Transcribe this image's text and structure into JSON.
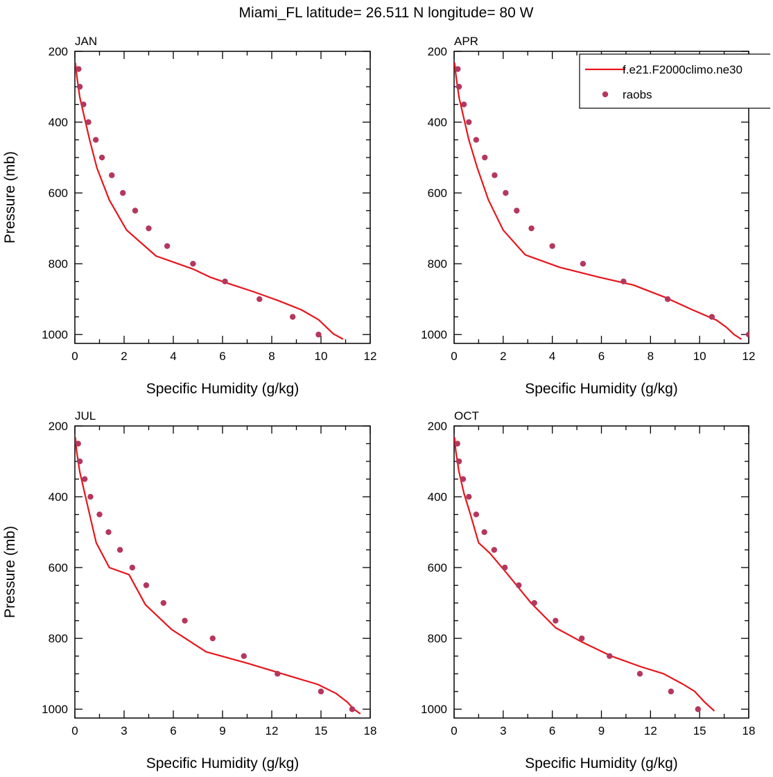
{
  "title": "Miami_FL  latitude= 26.511 N longitude= 80 W",
  "legend": {
    "placement": "top-right of APR panel",
    "entries": [
      {
        "label": "f.e21.F2000climo.ne30",
        "kind": "line",
        "color": "#e8141b"
      },
      {
        "label": "raobs",
        "kind": "marker",
        "color": "#b5375d"
      }
    ]
  },
  "colors": {
    "model_line": "#e8141b",
    "raobs_marker": "#b5375d"
  },
  "chart_data": [
    {
      "type": "line",
      "panel": "JAN",
      "title": "JAN",
      "xlabel": "Specific Humidity (g/kg)",
      "ylabel": "Pressure (mb)",
      "xlim": [
        0,
        12
      ],
      "ylim": [
        200,
        1025
      ],
      "y_reversed": true,
      "xticks": [
        0,
        2,
        4,
        6,
        8,
        10,
        12
      ],
      "yticks": [
        200,
        400,
        600,
        800,
        1000
      ],
      "series": [
        {
          "name": "f.e21.F2000climo.ne30",
          "kind": "line",
          "x": [
            0.02,
            0.08,
            0.2,
            0.4,
            0.6,
            0.9,
            1.4,
            2.1,
            3.3,
            4.8,
            5.5,
            6.2,
            7.3,
            8.3,
            9.2,
            9.9,
            10.5,
            10.9
          ],
          "y": [
            232,
            270,
            330,
            390,
            450,
            530,
            620,
            705,
            778,
            815,
            838,
            855,
            880,
            905,
            930,
            958,
            998,
            1013
          ]
        },
        {
          "name": "raobs",
          "kind": "scatter",
          "x": [
            0.15,
            0.2,
            0.35,
            0.55,
            0.85,
            1.1,
            1.5,
            1.95,
            2.45,
            3.0,
            3.75,
            4.8,
            6.1,
            7.5,
            8.85,
            9.9
          ],
          "y": [
            250,
            300,
            350,
            400,
            450,
            500,
            550,
            600,
            650,
            700,
            750,
            800,
            850,
            900,
            950,
            1000
          ]
        }
      ]
    },
    {
      "type": "line",
      "panel": "APR",
      "title": "APR",
      "xlabel": "Specific Humidity (g/kg)",
      "ylabel": "",
      "xlim": [
        0,
        12
      ],
      "ylim": [
        200,
        1025
      ],
      "y_reversed": true,
      "xticks": [
        0,
        2,
        4,
        6,
        8,
        10,
        12
      ],
      "yticks": [
        200,
        400,
        600,
        800,
        1000
      ],
      "series": [
        {
          "name": "f.e21.F2000climo.ne30",
          "kind": "line",
          "x": [
            0.02,
            0.08,
            0.2,
            0.4,
            0.6,
            0.95,
            1.4,
            2.0,
            2.9,
            4.3,
            5.9,
            7.3,
            8.6,
            9.7,
            10.7,
            11.1,
            11.4,
            11.7
          ],
          "y": [
            232,
            270,
            330,
            390,
            450,
            530,
            620,
            705,
            775,
            810,
            838,
            860,
            895,
            930,
            960,
            980,
            1000,
            1013
          ]
        },
        {
          "name": "raobs",
          "kind": "scatter",
          "x": [
            0.15,
            0.2,
            0.4,
            0.6,
            0.9,
            1.25,
            1.65,
            2.1,
            2.55,
            3.15,
            4.0,
            5.25,
            6.9,
            8.7,
            10.5,
            12.0
          ],
          "y": [
            250,
            300,
            350,
            400,
            450,
            500,
            550,
            600,
            650,
            700,
            750,
            800,
            850,
            900,
            950,
            1000
          ]
        }
      ]
    },
    {
      "type": "line",
      "panel": "JUL",
      "title": "JUL",
      "xlabel": "Specific Humidity (g/kg)",
      "ylabel": "Pressure (mb)",
      "xlim": [
        0,
        18
      ],
      "ylim": [
        200,
        1025
      ],
      "y_reversed": true,
      "xticks": [
        0,
        3,
        6,
        9,
        12,
        15,
        18
      ],
      "yticks": [
        200,
        400,
        600,
        800,
        1000
      ],
      "series": [
        {
          "name": "f.e21.F2000climo.ne30",
          "kind": "line",
          "x": [
            0.03,
            0.1,
            0.3,
            0.6,
            0.9,
            1.3,
            2.1,
            3.3,
            4.3,
            5.9,
            8.0,
            10.5,
            13.0,
            14.8,
            15.9,
            16.6,
            17.0,
            17.4
          ],
          "y": [
            232,
            270,
            330,
            390,
            450,
            530,
            600,
            620,
            705,
            775,
            838,
            870,
            905,
            930,
            955,
            980,
            1000,
            1013
          ]
        },
        {
          "name": "raobs",
          "kind": "scatter",
          "x": [
            0.2,
            0.3,
            0.6,
            0.95,
            1.5,
            2.05,
            2.75,
            3.5,
            4.35,
            5.4,
            6.7,
            8.4,
            10.3,
            12.35,
            15.0,
            16.9
          ],
          "y": [
            250,
            300,
            350,
            400,
            450,
            500,
            550,
            600,
            650,
            700,
            750,
            800,
            850,
            900,
            950,
            1000
          ]
        }
      ]
    },
    {
      "type": "line",
      "panel": "OCT",
      "title": "OCT",
      "xlabel": "Specific Humidity (g/kg)",
      "ylabel": "",
      "xlim": [
        0,
        18
      ],
      "ylim": [
        200,
        1025
      ],
      "y_reversed": true,
      "xticks": [
        0,
        3,
        6,
        9,
        12,
        15,
        18
      ],
      "yticks": [
        200,
        400,
        600,
        800,
        1000
      ],
      "series": [
        {
          "name": "f.e21.F2000climo.ne30",
          "kind": "line",
          "x": [
            0.03,
            0.1,
            0.3,
            0.6,
            1.0,
            1.5,
            2.2,
            3.2,
            4.7,
            6.2,
            7.8,
            9.6,
            11.4,
            12.8,
            14.0,
            14.7,
            15.3,
            15.9
          ],
          "y": [
            232,
            270,
            330,
            390,
            450,
            530,
            560,
            615,
            700,
            770,
            810,
            850,
            880,
            900,
            930,
            950,
            980,
            1005
          ]
        },
        {
          "name": "raobs",
          "kind": "scatter",
          "x": [
            0.2,
            0.3,
            0.55,
            0.9,
            1.35,
            1.85,
            2.45,
            3.1,
            3.95,
            4.9,
            6.2,
            7.8,
            9.5,
            11.35,
            13.25,
            14.9
          ],
          "y": [
            250,
            300,
            350,
            400,
            450,
            500,
            550,
            600,
            650,
            700,
            750,
            800,
            850,
            900,
            950,
            1000
          ]
        }
      ]
    }
  ]
}
